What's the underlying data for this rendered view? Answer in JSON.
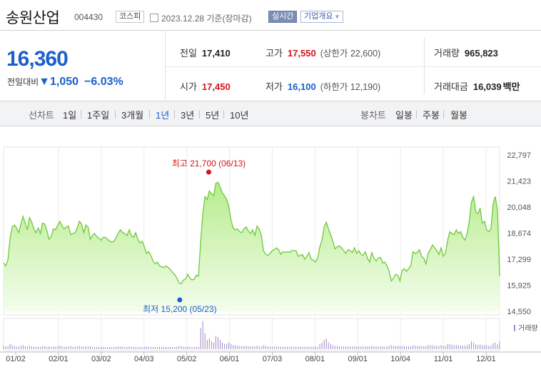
{
  "header": {
    "name": "송원산업",
    "code": "004430",
    "market": "코스피",
    "date_text": "2023.12.28  기준(장마감)",
    "realtime": "실시간",
    "company_info": "기업개요",
    "dropdown_arrow": "▼"
  },
  "quote": {
    "price": "16,360",
    "change_label": "전일대비",
    "change_arrow": "▼",
    "change": "1,050",
    "change_pct": "−6.03%",
    "prev_close_label": "전일",
    "prev_close": "17,410",
    "open_label": "시가",
    "open": "17,450",
    "high_label": "고가",
    "high": "17,550",
    "upper_limit": "(상한가 22,600)",
    "low_label": "저가",
    "low": "16,100",
    "lower_limit": "(하한가 12,190)",
    "volume_label": "거래량",
    "volume": "965,823",
    "amount_label": "거래대금",
    "amount": "16,039",
    "amount_unit": "백만"
  },
  "periods": {
    "line_label": "선차트",
    "items": [
      "1일",
      "1주일",
      "3개월",
      "1년",
      "3년",
      "5년",
      "10년"
    ],
    "active_index": 3,
    "candle_label": "봉차트",
    "candle_items": [
      "일봉",
      "주봉",
      "월봉"
    ]
  },
  "colors": {
    "line": "#6fc93a",
    "fill_top": "#b7ec8e",
    "fill_bottom": "#f3fdec",
    "volume": "#a08ac8",
    "price_blue": "#1d5fcf",
    "price_red": "#d3141b"
  },
  "chart_data": {
    "type": "area",
    "y_ticks": [
      "22,797",
      "21,423",
      "20,048",
      "18,674",
      "17,299",
      "15,925",
      "14,550"
    ],
    "ylim": [
      14550,
      22797
    ],
    "x_ticks": [
      "01/02",
      "02/01",
      "03/02",
      "04/03",
      "05/02",
      "06/01",
      "07/03",
      "08/01",
      "09/01",
      "10/04",
      "11/01",
      "12/01"
    ],
    "max_annotation": "최고 21,700 (06/13)",
    "min_annotation": "최저 15,200 (05/23)",
    "volume_label": "거래량",
    "series": [
      {
        "values": [
          17100,
          16950,
          17250,
          18400,
          19000,
          19100,
          18950,
          18700,
          19150,
          19550,
          19200,
          18850,
          19500,
          19250,
          18900,
          18700,
          18950,
          18650,
          19200,
          19150,
          18800,
          18350,
          18500,
          18900,
          18850,
          19100,
          19300,
          19050,
          18900,
          19000,
          19050,
          18600,
          18650,
          18700,
          18950,
          19300,
          19150,
          18700,
          19100,
          19000,
          18350,
          18550,
          18650,
          18500,
          18400,
          18300,
          18450,
          18450,
          18350,
          18250,
          18200,
          18250,
          18450,
          18700,
          18850,
          18700,
          18650,
          18550,
          18850,
          18550,
          18450,
          18700,
          18350,
          18150,
          18250,
          17950,
          17600,
          17700,
          17500,
          17200,
          17050,
          17150,
          16950,
          16900,
          16850,
          16950,
          16850,
          16750,
          16600,
          16500,
          16300,
          16050,
          16000,
          16200,
          16250,
          16500,
          16300,
          16200,
          16250,
          16450,
          16400,
          18250,
          19700,
          20600,
          20450,
          20900,
          20750,
          20650,
          21300,
          21350,
          21100,
          20800,
          20650,
          20450,
          20050,
          19350,
          18950,
          18850,
          18900,
          18750,
          18700,
          18900,
          19000,
          18800,
          18650,
          18850,
          18550,
          19050,
          18900,
          18550,
          17750,
          17550,
          17500,
          17600,
          17750,
          17800,
          17900,
          17800,
          17550,
          17700,
          17650,
          17700,
          17650,
          17750,
          17750,
          17750,
          17450,
          17500,
          17550,
          17300,
          17450,
          17650,
          17300,
          17250,
          17150,
          17350,
          17950,
          18300,
          19000,
          19250,
          18900,
          18600,
          18250,
          17850,
          17950,
          18000,
          17900,
          17750,
          17600,
          17800,
          17750,
          17650,
          17900,
          17600,
          17750,
          17550,
          17500,
          17700,
          17350,
          17150,
          17650,
          17350,
          17200,
          17350,
          17400,
          17100,
          17150,
          16950,
          16650,
          16150,
          16300,
          16500,
          16450,
          16150,
          16700,
          16800,
          16650,
          16800,
          16950,
          17700,
          17600,
          17650,
          17800,
          17450,
          17350,
          17050,
          17600,
          17800,
          18050,
          17900,
          17750,
          17550,
          17900,
          17450,
          17600,
          18300,
          18750,
          18650,
          18600,
          18850,
          18650,
          18750,
          18450,
          18300,
          18650,
          19300,
          20300,
          20600,
          19800,
          19700,
          20000,
          19200,
          19300,
          18850,
          18750,
          18900,
          20200,
          20600,
          19900,
          16400
        ]
      }
    ],
    "volume": [
      1.2,
      1.0,
      1.1,
      2.0,
      1.5,
      1.2,
      1.0,
      0.9,
      1.3,
      1.5,
      1.1,
      1.0,
      1.4,
      1.0,
      0.9,
      0.8,
      1.0,
      0.9,
      1.2,
      1.1,
      0.9,
      1.1,
      0.8,
      1.0,
      0.9,
      1.1,
      1.3,
      1.0,
      0.9,
      1.0,
      0.9,
      1.2,
      0.8,
      0.9,
      1.0,
      1.2,
      1.0,
      0.9,
      1.1,
      1.0,
      1.1,
      0.8,
      0.9,
      0.8,
      0.8,
      0.9,
      0.8,
      0.8,
      0.8,
      0.9,
      0.8,
      0.8,
      0.9,
      1.0,
      1.0,
      0.9,
      0.8,
      0.8,
      1.0,
      0.9,
      0.8,
      0.9,
      0.9,
      0.8,
      0.8,
      0.9,
      1.0,
      0.8,
      0.8,
      0.9,
      0.8,
      0.8,
      0.9,
      0.8,
      0.8,
      0.8,
      0.8,
      0.8,
      0.9,
      0.9,
      1.0,
      1.2,
      1.1,
      0.9,
      0.8,
      1.0,
      0.9,
      0.8,
      0.8,
      0.9,
      0.9,
      8.0,
      10.5,
      6.0,
      3.5,
      4.0,
      3.0,
      2.5,
      5.0,
      4.5,
      3.5,
      2.5,
      2.0,
      2.0,
      2.5,
      2.0,
      1.5,
      1.5,
      1.3,
      1.2,
      1.1,
      1.2,
      1.2,
      1.1,
      1.0,
      1.1,
      1.0,
      1.2,
      1.1,
      1.0,
      1.5,
      1.2,
      1.0,
      1.0,
      1.0,
      1.0,
      1.1,
      1.0,
      1.0,
      0.9,
      0.9,
      0.9,
      0.9,
      1.0,
      0.9,
      0.9,
      0.9,
      0.9,
      0.9,
      0.9,
      0.9,
      0.9,
      0.9,
      0.9,
      0.9,
      0.9,
      2.0,
      2.5,
      3.5,
      4.0,
      2.5,
      2.0,
      1.5,
      1.2,
      1.2,
      1.1,
      1.1,
      1.0,
      1.0,
      1.1,
      1.0,
      1.0,
      1.1,
      1.0,
      1.0,
      1.0,
      1.0,
      1.1,
      1.0,
      1.0,
      1.2,
      1.1,
      1.0,
      1.0,
      1.0,
      1.0,
      1.0,
      1.0,
      1.2,
      1.5,
      1.3,
      1.2,
      1.1,
      1.2,
      1.2,
      1.1,
      1.1,
      1.1,
      1.1,
      1.5,
      1.3,
      1.2,
      1.2,
      1.2,
      1.1,
      1.1,
      1.6,
      1.5,
      1.4,
      1.3,
      1.2,
      1.2,
      1.5,
      1.3,
      1.2,
      2.0,
      2.0,
      1.7,
      1.5,
      1.6,
      1.5,
      1.4,
      1.3,
      1.3,
      1.5,
      2.0,
      3.0,
      2.5,
      1.8,
      1.6,
      1.8,
      1.5,
      1.5,
      1.4,
      1.3,
      1.4,
      2.2,
      2.5,
      1.8,
      2.8
    ]
  }
}
